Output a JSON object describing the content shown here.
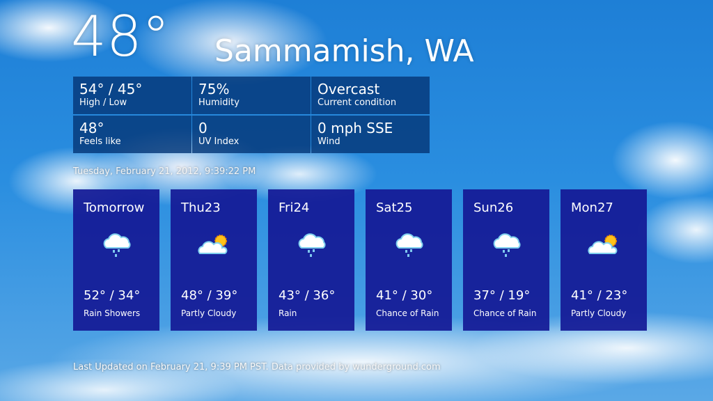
{
  "current": {
    "temperature": "48°",
    "city": "Sammamish, WA"
  },
  "details": [
    {
      "value": "54° / 45°",
      "label": "High / Low"
    },
    {
      "value": "75%",
      "label": "Humidity"
    },
    {
      "value": "Overcast",
      "label": "Current condition"
    },
    {
      "value": "48°",
      "label": "Feels like"
    },
    {
      "value": "0",
      "label": "UV Index"
    },
    {
      "value": "0 mph SSE",
      "label": "Wind"
    }
  ],
  "datetime": "Tuesday, February 21, 2012, 9:39:22 PM",
  "forecast": [
    {
      "day": "Tomorrow",
      "temps": "52° / 34°",
      "condition": "Rain Showers",
      "icon": "rain-cloud-icon"
    },
    {
      "day": "Thu23",
      "temps": "48° / 39°",
      "condition": "Partly Cloudy",
      "icon": "partly-cloudy-icon"
    },
    {
      "day": "Fri24",
      "temps": "43° / 36°",
      "condition": "Rain",
      "icon": "rain-cloud-icon"
    },
    {
      "day": "Sat25",
      "temps": "41° / 30°",
      "condition": "Chance of Rain",
      "icon": "rain-cloud-icon"
    },
    {
      "day": "Sun26",
      "temps": "37° / 19°",
      "condition": "Chance of Rain",
      "icon": "rain-cloud-icon"
    },
    {
      "day": "Mon27",
      "temps": "41° / 23°",
      "condition": "Partly Cloudy",
      "icon": "partly-cloudy-icon"
    }
  ],
  "footer": "Last Updated on February 21, 9:39 PM PST. Data provided by wunderground.com",
  "colors": {
    "tile": "#14199a",
    "detail": "#05377a"
  }
}
